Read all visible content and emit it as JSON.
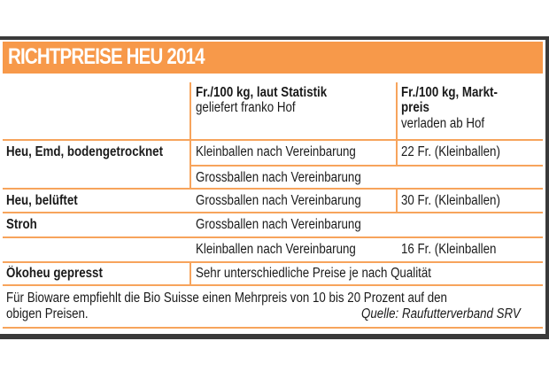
{
  "title": "RICHTPREISE HEU 2014",
  "columns": [
    {
      "heading": "Fr./100 kg, laut Statistik",
      "sub": "geliefert franko Hof"
    },
    {
      "heading_line1": "Fr./100 kg, Markt-",
      "heading_line2": "preis",
      "sub": "verladen ab Hof"
    }
  ],
  "rows": [
    {
      "label": "Heu, Emd, bodengetrocknet",
      "statistik": "Kleinballen nach Vereinbarung",
      "markt": "22 Fr. (Kleinballen)"
    },
    {
      "label": "",
      "statistik": "Grossballen nach Vereinbarung",
      "markt": ""
    },
    {
      "label": "Heu, belüftet",
      "statistik": "Grossballen nach Vereinbarung",
      "markt": "30 Fr. (Kleinballen)"
    },
    {
      "label": "Stroh",
      "statistik": "Grossballen nach Vereinbarung",
      "markt": ""
    },
    {
      "label": "",
      "statistik": "Kleinballen nach Vereinbarung",
      "markt": "16 Fr. (Kleinballen"
    },
    {
      "label": "Ökoheu gepresst",
      "statistik": "Sehr unterschiedliche Preise je nach Qualität",
      "markt": ""
    }
  ],
  "footer": {
    "note_line1": "Für Bioware empfiehlt die Bio Suisse einen Mehrpreis von 10 bis 20 Prozent auf den",
    "note_line2": "obigen Preisen.",
    "source": "Quelle: Raufutterverband SRV"
  },
  "colors": {
    "accent": "#f7994a",
    "frame": "#3a3a3a"
  }
}
